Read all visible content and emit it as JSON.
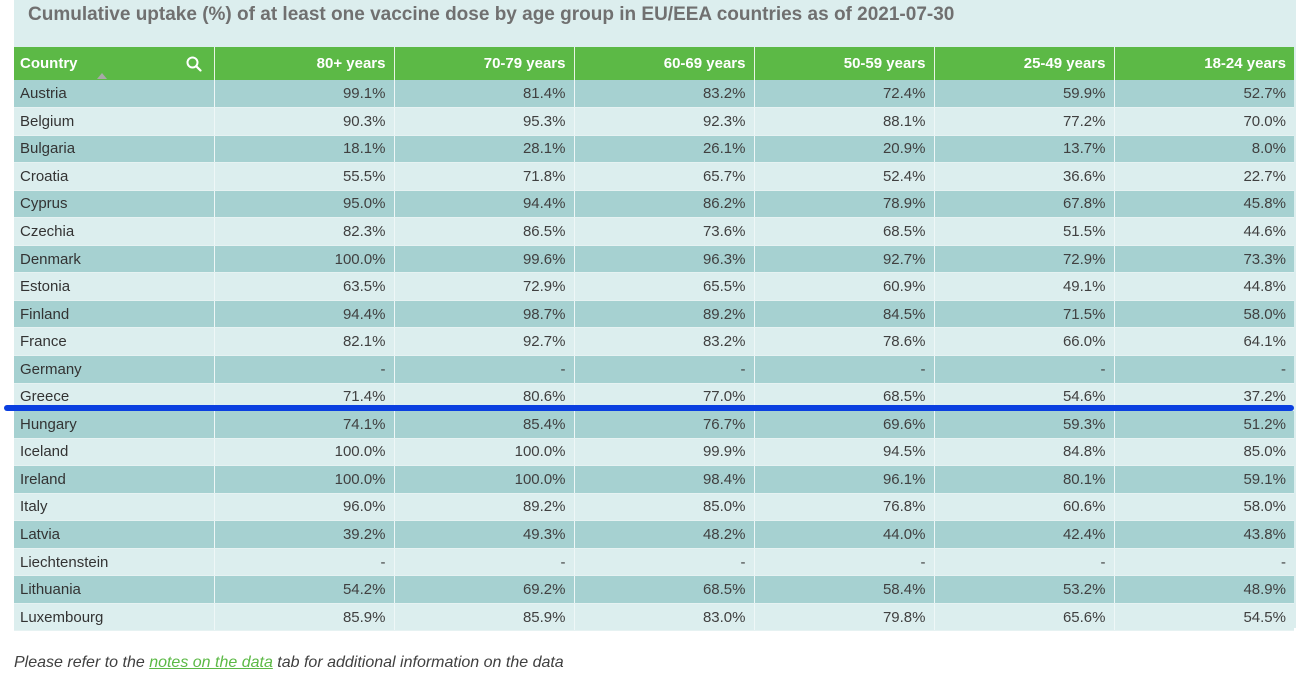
{
  "chart_data": {
    "type": "table",
    "title": "Cumulative uptake (%) of at least one vaccine dose by age group in EU/EEA countries as of 2021-07-30",
    "columns": [
      "Country",
      "80+ years",
      "70-79 years",
      "60-69 years",
      "50-59 years",
      "25-49 years",
      "18-24 years"
    ],
    "rows": [
      [
        "Austria",
        "99.1%",
        "81.4%",
        "83.2%",
        "72.4%",
        "59.9%",
        "52.7%"
      ],
      [
        "Belgium",
        "90.3%",
        "95.3%",
        "92.3%",
        "88.1%",
        "77.2%",
        "70.0%"
      ],
      [
        "Bulgaria",
        "18.1%",
        "28.1%",
        "26.1%",
        "20.9%",
        "13.7%",
        "8.0%"
      ],
      [
        "Croatia",
        "55.5%",
        "71.8%",
        "65.7%",
        "52.4%",
        "36.6%",
        "22.7%"
      ],
      [
        "Cyprus",
        "95.0%",
        "94.4%",
        "86.2%",
        "78.9%",
        "67.8%",
        "45.8%"
      ],
      [
        "Czechia",
        "82.3%",
        "86.5%",
        "73.6%",
        "68.5%",
        "51.5%",
        "44.6%"
      ],
      [
        "Denmark",
        "100.0%",
        "99.6%",
        "96.3%",
        "92.7%",
        "72.9%",
        "73.3%"
      ],
      [
        "Estonia",
        "63.5%",
        "72.9%",
        "65.5%",
        "60.9%",
        "49.1%",
        "44.8%"
      ],
      [
        "Finland",
        "94.4%",
        "98.7%",
        "89.2%",
        "84.5%",
        "71.5%",
        "58.0%"
      ],
      [
        "France",
        "82.1%",
        "92.7%",
        "83.2%",
        "78.6%",
        "66.0%",
        "64.1%"
      ],
      [
        "Germany",
        "-",
        "-",
        "-",
        "-",
        "-",
        "-"
      ],
      [
        "Greece",
        "71.4%",
        "80.6%",
        "77.0%",
        "68.5%",
        "54.6%",
        "37.2%"
      ],
      [
        "Hungary",
        "74.1%",
        "85.4%",
        "76.7%",
        "69.6%",
        "59.3%",
        "51.2%"
      ],
      [
        "Iceland",
        "100.0%",
        "100.0%",
        "99.9%",
        "94.5%",
        "84.8%",
        "85.0%"
      ],
      [
        "Ireland",
        "100.0%",
        "100.0%",
        "98.4%",
        "96.1%",
        "80.1%",
        "59.1%"
      ],
      [
        "Italy",
        "96.0%",
        "89.2%",
        "85.0%",
        "76.8%",
        "60.6%",
        "58.0%"
      ],
      [
        "Latvia",
        "39.2%",
        "49.3%",
        "48.2%",
        "44.0%",
        "42.4%",
        "43.8%"
      ],
      [
        "Liechtenstein",
        "-",
        "-",
        "-",
        "-",
        "-",
        "-"
      ],
      [
        "Lithuania",
        "54.2%",
        "69.2%",
        "68.5%",
        "58.4%",
        "53.2%",
        "48.9%"
      ],
      [
        "Luxembourg",
        "85.9%",
        "85.9%",
        "83.0%",
        "79.8%",
        "65.6%",
        "54.5%"
      ]
    ],
    "sorted_by": "Country",
    "sort_direction": "ascending"
  },
  "icons": {
    "search": "search-icon",
    "sort": "sort-ascending-icon"
  },
  "colors": {
    "header_bg": "#5cb946",
    "row_odd": "#a6d1d1",
    "row_even": "#dceeee",
    "highlight_line": "#0a3fe0",
    "link": "#5cb946"
  },
  "footer": {
    "prefix": "Please refer to the ",
    "link": "notes on the data",
    "suffix": " tab for additional information on the data"
  }
}
